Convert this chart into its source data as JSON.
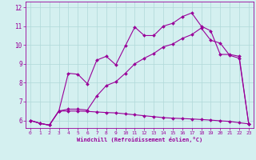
{
  "xlabel": "Windchill (Refroidissement éolien,°C)",
  "background_color": "#d4f0f0",
  "grid_color": "#b0d8d8",
  "line_color": "#990099",
  "xlim": [
    -0.5,
    23.5
  ],
  "ylim": [
    5.6,
    12.3
  ],
  "xticks": [
    0,
    1,
    2,
    3,
    4,
    5,
    6,
    7,
    8,
    9,
    10,
    11,
    12,
    13,
    14,
    15,
    16,
    17,
    18,
    19,
    20,
    21,
    22,
    23
  ],
  "yticks": [
    6,
    7,
    8,
    9,
    10,
    11,
    12
  ],
  "line1_x": [
    0,
    1,
    2,
    3,
    4,
    5,
    6,
    7,
    8,
    9,
    10,
    11,
    12,
    13,
    14,
    15,
    16,
    17,
    18,
    19,
    20,
    21,
    22,
    23
  ],
  "line1_y": [
    6.0,
    5.85,
    5.75,
    6.5,
    6.5,
    6.5,
    6.48,
    6.45,
    6.42,
    6.4,
    6.35,
    6.3,
    6.25,
    6.2,
    6.15,
    6.12,
    6.1,
    6.08,
    6.05,
    6.02,
    5.98,
    5.95,
    5.88,
    5.82
  ],
  "line2_x": [
    0,
    1,
    2,
    3,
    4,
    5,
    6,
    7,
    8,
    9,
    10,
    11,
    12,
    13,
    14,
    15,
    16,
    17,
    18,
    19,
    20,
    21,
    22,
    23
  ],
  "line2_y": [
    6.0,
    5.85,
    5.75,
    6.5,
    6.6,
    6.6,
    6.55,
    7.3,
    7.85,
    8.05,
    8.5,
    9.0,
    9.3,
    9.55,
    9.9,
    10.05,
    10.35,
    10.55,
    10.9,
    10.25,
    10.1,
    9.45,
    9.3,
    5.82
  ],
  "line3_x": [
    0,
    1,
    2,
    3,
    4,
    5,
    6,
    7,
    8,
    9,
    10,
    11,
    12,
    13,
    14,
    15,
    16,
    17,
    18,
    19,
    20,
    21,
    22,
    23
  ],
  "line3_y": [
    6.0,
    5.85,
    5.75,
    6.5,
    8.5,
    8.45,
    7.95,
    9.2,
    9.4,
    8.95,
    9.95,
    10.95,
    10.5,
    10.5,
    11.0,
    11.15,
    11.5,
    11.7,
    11.0,
    10.75,
    9.5,
    9.5,
    9.4,
    5.82
  ],
  "marker": "D",
  "markersize": 2.0,
  "linewidth": 0.8
}
